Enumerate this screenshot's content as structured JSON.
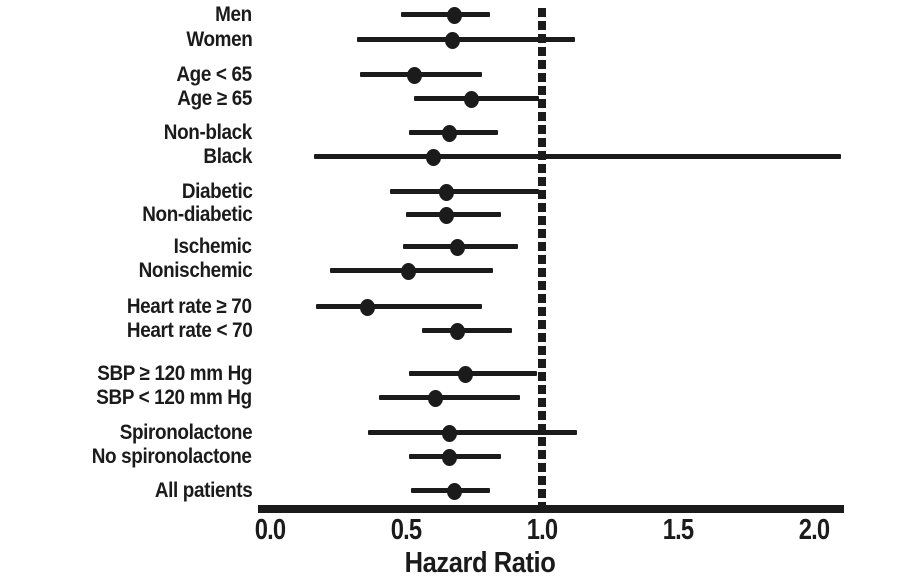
{
  "chart_data": {
    "type": "forest",
    "title": "",
    "xlabel": "Hazard Ratio",
    "x_tick_labels": [
      "0.0",
      "0.5",
      "1.0",
      "1.5",
      "2.0"
    ],
    "x_tick_values": [
      0.0,
      0.5,
      1.0,
      1.5,
      2.0
    ],
    "xlim": [
      -0.05,
      2.11
    ],
    "reference_line_x": 1.0,
    "reference_line_style": "dashed",
    "grid": false,
    "legend": "none",
    "groups": [
      {
        "rows": [
          {
            "label": "Men",
            "hr": 0.68,
            "ci_low": 0.48,
            "ci_high": 0.81
          },
          {
            "label": "Women",
            "hr": 0.67,
            "ci_low": 0.32,
            "ci_high": 1.12
          }
        ]
      },
      {
        "rows": [
          {
            "label": "Age < 65",
            "hr": 0.53,
            "ci_low": 0.33,
            "ci_high": 0.78
          },
          {
            "label": "Age ≥ 65",
            "hr": 0.74,
            "ci_low": 0.53,
            "ci_high": 0.99
          }
        ]
      },
      {
        "rows": [
          {
            "label": "Non-black",
            "hr": 0.66,
            "ci_low": 0.51,
            "ci_high": 0.84
          },
          {
            "label": "Black",
            "hr": 0.6,
            "ci_low": 0.16,
            "ci_high": 2.1
          }
        ]
      },
      {
        "rows": [
          {
            "label": "Diabetic",
            "hr": 0.65,
            "ci_low": 0.44,
            "ci_high": 0.99
          },
          {
            "label": "Non-diabetic",
            "hr": 0.65,
            "ci_low": 0.5,
            "ci_high": 0.85
          }
        ]
      },
      {
        "rows": [
          {
            "label": "Ischemic",
            "hr": 0.69,
            "ci_low": 0.49,
            "ci_high": 0.91
          },
          {
            "label": "Nonischemic",
            "hr": 0.51,
            "ci_low": 0.22,
            "ci_high": 0.82
          }
        ]
      },
      {
        "rows": [
          {
            "label": "Heart rate ≥ 70",
            "hr": 0.36,
            "ci_low": 0.17,
            "ci_high": 0.78
          },
          {
            "label": "Heart rate < 70",
            "hr": 0.69,
            "ci_low": 0.56,
            "ci_high": 0.89
          }
        ]
      },
      {
        "rows": [
          {
            "label": "SBP ≥ 120 mm Hg",
            "hr": 0.72,
            "ci_low": 0.51,
            "ci_high": 0.98
          },
          {
            "label": "SBP < 120 mm Hg",
            "hr": 0.61,
            "ci_low": 0.4,
            "ci_high": 0.92
          }
        ]
      },
      {
        "rows": [
          {
            "label": "Spironolactone",
            "hr": 0.66,
            "ci_low": 0.36,
            "ci_high": 1.13
          },
          {
            "label": "No spironolactone",
            "hr": 0.66,
            "ci_low": 0.51,
            "ci_high": 0.85
          }
        ]
      },
      {
        "rows": [
          {
            "label": "All patients",
            "hr": 0.68,
            "ci_low": 0.52,
            "ci_high": 0.81
          }
        ]
      }
    ]
  },
  "colors": {
    "ink": "#1b1b1b",
    "background": "#ffffff"
  }
}
